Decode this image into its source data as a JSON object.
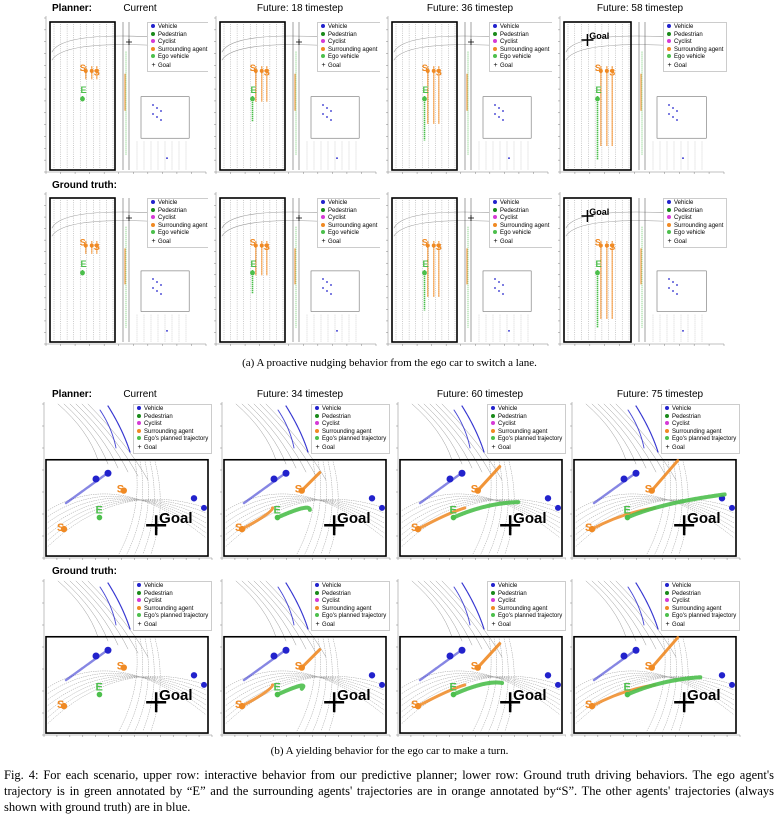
{
  "part_a": {
    "row_labels": {
      "planner": "Planner:",
      "ground_truth": "Ground truth:"
    },
    "panel_titles": [
      "Current",
      "Future: 18 timestep",
      "Future: 36 timestep",
      "Future: 58 timestep"
    ],
    "caption": "(a) A proactive nudging behavior from the ego car to switch a lane."
  },
  "part_b": {
    "row_labels": {
      "planner": "Planner:",
      "ground_truth": "Ground truth:"
    },
    "panel_titles": [
      "Current",
      "Future: 34 timestep",
      "Future: 60 timestep",
      "Future: 75 timestep"
    ],
    "caption": "(b) A yielding behavior for the ego car to make a turn."
  },
  "legend_a": [
    {
      "label": "Vehicle",
      "color": "#2222cc",
      "icon": "circle-marker-icon"
    },
    {
      "label": "Pedestrian",
      "color": "#1a8a1a",
      "icon": "circle-marker-icon"
    },
    {
      "label": "Cyclist",
      "color": "#d63ad6",
      "icon": "circle-marker-icon"
    },
    {
      "label": "Surrounding agent",
      "color": "#f08a24",
      "icon": "circle-marker-icon"
    },
    {
      "label": "Ego vehicle",
      "color": "#4cbf4c",
      "icon": "circle-marker-icon"
    },
    {
      "label": "Goal",
      "color": "#000000",
      "icon": "plus-marker-icon"
    }
  ],
  "legend_b": [
    {
      "label": "Vehicle",
      "color": "#2222cc",
      "icon": "circle-marker-icon"
    },
    {
      "label": "Pedestrian",
      "color": "#1a8a1a",
      "icon": "circle-marker-icon"
    },
    {
      "label": "Cyclist",
      "color": "#d63ad6",
      "icon": "circle-marker-icon"
    },
    {
      "label": "Surrounding agent",
      "color": "#f08a24",
      "icon": "circle-marker-icon"
    },
    {
      "label": "Ego's planned trajectory",
      "color": "#4cbf4c",
      "icon": "circle-marker-icon"
    },
    {
      "label": "Goal",
      "color": "#000000",
      "icon": "plus-marker-icon"
    }
  ],
  "annotations": {
    "goal": "Goal",
    "ego": "E",
    "surrounding": "S"
  },
  "figure_caption": "Fig. 4: For each scenario, upper row: interactive behavior from our predictive planner; lower row: Ground truth driving behaviors. The ego agent's trajectory is in green annotated by “E” and the surrounding agents' trajectories are in orange annotated by“S”. The other agents' trajectories (always shown with ground truth) are in blue.",
  "colors": {
    "ego": "#4cbf4c",
    "surrounding": "#f08a24",
    "vehicle": "#2222cc",
    "map": "#9a9a9a"
  }
}
